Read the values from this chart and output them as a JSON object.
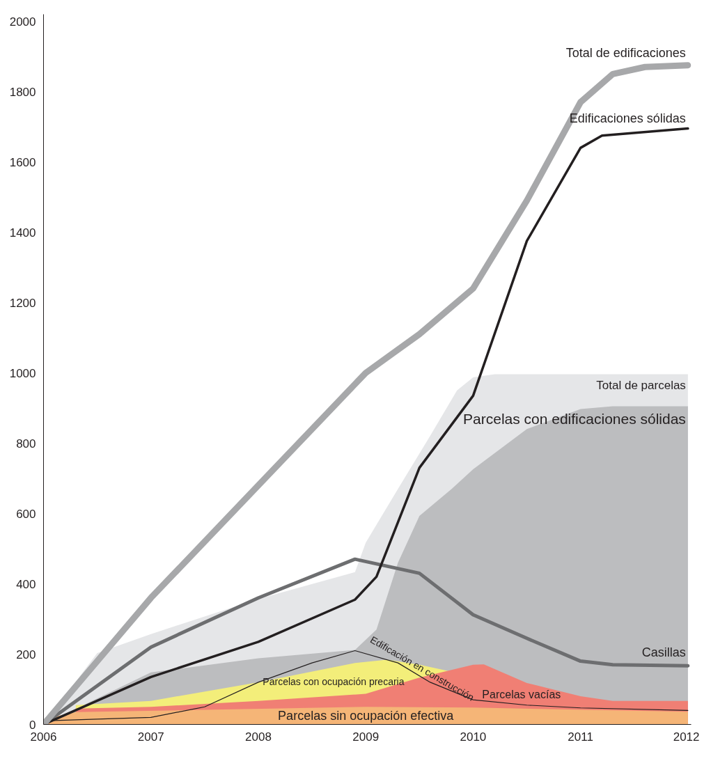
{
  "chart_data": {
    "type": "line",
    "xlim": [
      2006,
      2012.03
    ],
    "ylim": [
      0,
      2020
    ],
    "xticks": [
      2006,
      2007,
      2008,
      2009,
      2010,
      2011,
      2012
    ],
    "yticks": [
      0,
      200,
      400,
      600,
      800,
      1000,
      1200,
      1400,
      1600,
      1800,
      2000
    ],
    "grid": false,
    "series": [
      {
        "name": "Total de parcelas",
        "type": "area",
        "color": "#e5e6e8",
        "x": [
          2006,
          2006.5,
          2007,
          2008,
          2008.9,
          2009,
          2009.3,
          2009.6,
          2009.85,
          2010,
          2010.2,
          2012
        ],
        "values": [
          0,
          203,
          257,
          357,
          433,
          517,
          670,
          821,
          950,
          987,
          996,
          996
        ]
      },
      {
        "name": "Parcelas con edificaciones sólidas",
        "type": "area",
        "color": "#bcbdbf",
        "x": [
          2006,
          2007,
          2008,
          2008.9,
          2009.1,
          2009.3,
          2009.5,
          2009.8,
          2010,
          2010.5,
          2011,
          2011.3,
          2012
        ],
        "values": [
          0,
          148,
          188,
          212,
          270,
          460,
          593,
          670,
          726,
          840,
          897,
          905,
          905
        ]
      },
      {
        "name": "Parcelas con ocupación precaria",
        "type": "area",
        "color": "#f3ee7a",
        "x": [
          2006.3,
          2007,
          2008,
          2008.9,
          2009.2,
          2009.5,
          2009.8
        ],
        "values": [
          55,
          67,
          120,
          175,
          184,
          170,
          150
        ]
      },
      {
        "name": "Parcelas vacías",
        "type": "area",
        "color": "#f07f74",
        "x": [
          2006.3,
          2007,
          2008,
          2009,
          2009.5,
          2010,
          2010.1,
          2010.5,
          2011,
          2011.3,
          2012
        ],
        "values": [
          45,
          50,
          67,
          87,
          133,
          170,
          171,
          118,
          80,
          67,
          67
        ]
      },
      {
        "name": "Parcelas sin ocupación efectiva",
        "type": "area",
        "color": "#f5b577",
        "x": [
          2006,
          2006.3,
          2009,
          2010,
          2012
        ],
        "values": [
          15,
          35,
          50,
          48,
          36
        ]
      },
      {
        "name": "Edificación en construcción",
        "color": "#231f20",
        "x": [
          2006,
          2007,
          2007.5,
          2008,
          2008.5,
          2008.9,
          2009.3,
          2009.6,
          2010,
          2010.5,
          2011,
          2012
        ],
        "values": [
          10,
          20,
          50,
          120,
          175,
          210,
          175,
          120,
          70,
          55,
          47,
          40
        ]
      },
      {
        "name": "Casillas",
        "color": "#6d6e70",
        "x": [
          2006,
          2007,
          2008,
          2008.9,
          2009.5,
          2010,
          2010.5,
          2011,
          2011.3,
          2012
        ],
        "values": [
          0,
          220,
          360,
          470,
          430,
          312,
          245,
          180,
          170,
          167
        ]
      },
      {
        "name": "Edificaciones sólidas",
        "color": "#231f20",
        "x": [
          2006,
          2007,
          2008,
          2008.9,
          2009.1,
          2009.5,
          2010,
          2010.5,
          2011,
          2011.2,
          2012
        ],
        "values": [
          0,
          135,
          235,
          355,
          420,
          730,
          935,
          1375,
          1640,
          1675,
          1695
        ]
      },
      {
        "name": "Total de edificaciones",
        "color": "#a7a8aa",
        "x": [
          2006,
          2007,
          2008,
          2009,
          2009.5,
          2010,
          2010.5,
          2011,
          2011.3,
          2011.6,
          2012
        ],
        "values": [
          0,
          360,
          680,
          1000,
          1110,
          1240,
          1490,
          1770,
          1850,
          1870,
          1875
        ]
      }
    ]
  }
}
